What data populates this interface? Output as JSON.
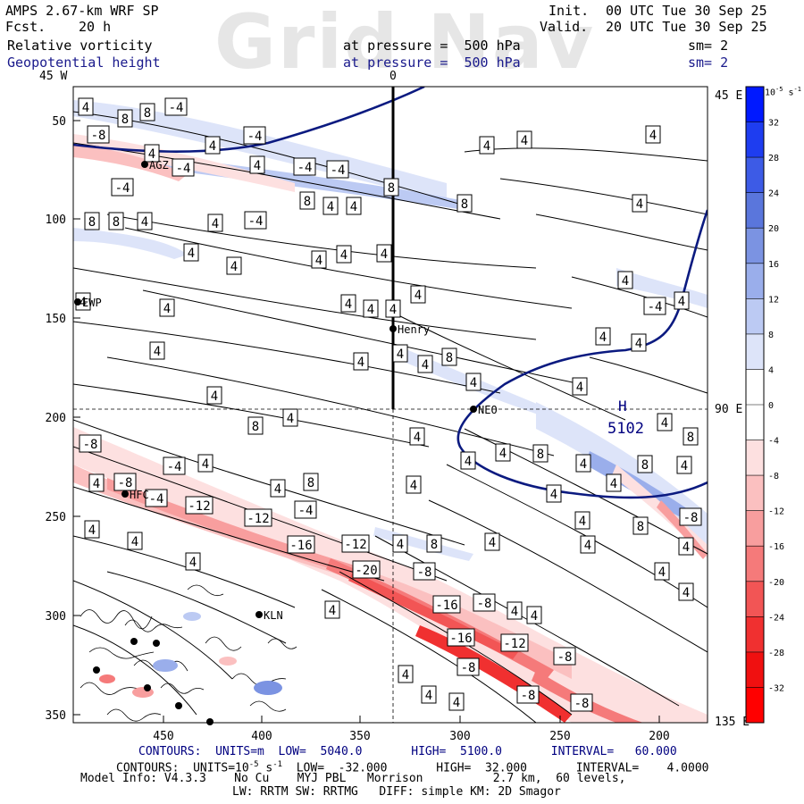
{
  "header": {
    "model_title": "AMPS 2.67-km WRF SP",
    "forecast_label": "Fcst.",
    "forecast_value": "20 h",
    "init_label": "Init.",
    "init_value": "00 UTC Tue 30 Sep 25",
    "valid_label": "Valid.",
    "valid_value": "20 UTC Tue 30 Sep 25",
    "field1_name": "Relative vorticity",
    "field1_level": "at pressure =  500 hPa",
    "field1_smooth": "sm= 2",
    "field2_name": "Geopotential height",
    "field2_level": "at pressure =  500 hPa",
    "field2_smooth": "sm= 2",
    "watermark": "Grid Nav"
  },
  "map": {
    "lon_labels": {
      "top_left": "45 W",
      "top_center": "0",
      "right_top": "45 E",
      "right_mid": "90 E",
      "right_bottom": "135 E"
    },
    "x_ticks": [
      "450",
      "400",
      "350",
      "300",
      "250",
      "200"
    ],
    "y_ticks": [
      "50",
      "100",
      "150",
      "200",
      "250",
      "300",
      "350"
    ],
    "stations": [
      "AGZ",
      "EWP",
      "Henry",
      "NEO",
      "HFC",
      "KLN"
    ],
    "high_label": "H",
    "high_value": "5102",
    "vorticity_labels_positive": [
      "4",
      "8"
    ],
    "vorticity_labels_negative": [
      "-4",
      "-8",
      "-12",
      "-16",
      "-20"
    ]
  },
  "colorbar": {
    "unit": "10",
    "unit_exp": "-5",
    "unit_suffix": "s",
    "unit_suffix_exp": "-1",
    "levels": [
      "32",
      "28",
      "24",
      "20",
      "16",
      "12",
      "8",
      "4",
      "0",
      "-4",
      "-8",
      "-12",
      "-16",
      "-20",
      "-24",
      "-28",
      "-32"
    ],
    "colors": [
      "#0019ff",
      "#1e3df0",
      "#3d5be6",
      "#5a76dc",
      "#7b93e2",
      "#9aaeeb",
      "#bccaf3",
      "#dde4f9",
      "#ffffff",
      "#ffffff",
      "#fde0e0",
      "#fbc0c0",
      "#f89e9e",
      "#f57a7a",
      "#f25555",
      "#f03030",
      "#f01010",
      "#ff0000"
    ]
  },
  "footer": {
    "line1": "CONTOURS:  UNITS=m  LOW=  5040.0       HIGH=  5100.0       INTERVAL=   60.000",
    "line2_a": "CONTOURS:  UNITS=10",
    "line2_exp": "-5",
    "line2_b": " s",
    "line2_exp2": "-1",
    "line2_c": "  LOW=  -32.000       HIGH=  32.000       INTERVAL=    4.0000",
    "line3": "Model Info: V4.3.3    No Cu    MYJ PBL   Morrison          2.7 km,  60 levels,",
    "line4": "LW: RRTM SW: RRTMG   DIFF: simple KM: 2D Smagor"
  }
}
